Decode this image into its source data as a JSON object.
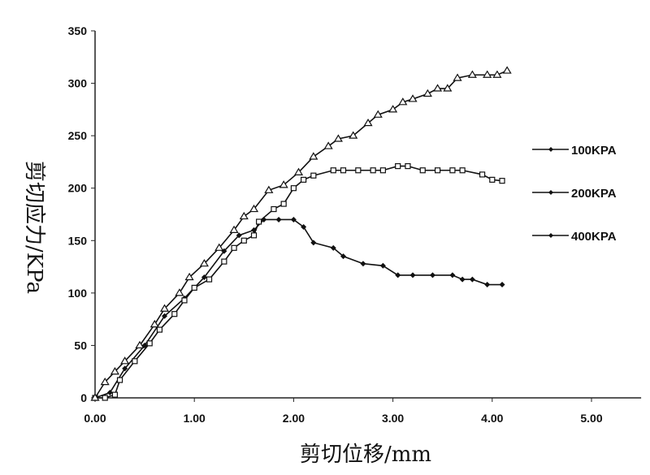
{
  "chart_data": {
    "type": "line",
    "title": "",
    "xlabel": "剪切位移/mm",
    "ylabel": "剪切应力/KPa",
    "xlim": [
      0,
      5.5
    ],
    "ylim": [
      0,
      350
    ],
    "xticks": [
      "0.00",
      "1.00",
      "2.00",
      "3.00",
      "4.00",
      "5.00"
    ],
    "xtick_values": [
      0,
      1,
      2,
      3,
      4,
      5
    ],
    "yticks": [
      "0",
      "50",
      "100",
      "150",
      "200",
      "250",
      "300",
      "350"
    ],
    "ytick_values": [
      0,
      50,
      100,
      150,
      200,
      250,
      300,
      350
    ],
    "grid": false,
    "legend_position": "right",
    "series": [
      {
        "name": "100KPA",
        "marker": "diamond",
        "x": [
          0,
          0.15,
          0.3,
          0.5,
          0.7,
          0.9,
          1.1,
          1.3,
          1.45,
          1.6,
          1.7,
          1.85,
          2.0,
          2.1,
          2.2,
          2.4,
          2.5,
          2.7,
          2.9,
          3.05,
          3.2,
          3.4,
          3.6,
          3.7,
          3.8,
          3.95,
          4.1
        ],
        "y": [
          0,
          5,
          28,
          50,
          78,
          95,
          115,
          140,
          155,
          160,
          170,
          170,
          170,
          163,
          148,
          143,
          135,
          128,
          126,
          117,
          117,
          117,
          117,
          113,
          113,
          108,
          108
        ]
      },
      {
        "name": "200KPA",
        "marker": "square",
        "x": [
          0,
          0.1,
          0.2,
          0.25,
          0.4,
          0.55,
          0.65,
          0.8,
          0.9,
          1.0,
          1.15,
          1.3,
          1.4,
          1.5,
          1.6,
          1.65,
          1.8,
          1.9,
          2.0,
          2.1,
          2.2,
          2.4,
          2.5,
          2.65,
          2.8,
          2.9,
          3.05,
          3.15,
          3.3,
          3.45,
          3.6,
          3.7,
          3.9,
          4.0,
          4.1
        ],
        "y": [
          0,
          0,
          3,
          17,
          35,
          52,
          65,
          80,
          93,
          105,
          113,
          130,
          143,
          150,
          155,
          168,
          180,
          185,
          200,
          208,
          212,
          217,
          217,
          217,
          217,
          217,
          221,
          221,
          217,
          217,
          217,
          217,
          213,
          208,
          207
        ]
      },
      {
        "name": "400KPA",
        "marker": "triangle",
        "x": [
          0,
          0.1,
          0.2,
          0.3,
          0.45,
          0.6,
          0.7,
          0.85,
          0.95,
          1.1,
          1.25,
          1.4,
          1.5,
          1.6,
          1.75,
          1.9,
          2.05,
          2.2,
          2.35,
          2.45,
          2.6,
          2.75,
          2.85,
          3.0,
          3.1,
          3.2,
          3.35,
          3.45,
          3.55,
          3.65,
          3.8,
          3.95,
          4.05,
          4.15
        ],
        "y": [
          0,
          15,
          25,
          35,
          50,
          70,
          85,
          100,
          115,
          128,
          143,
          160,
          173,
          180,
          198,
          203,
          215,
          230,
          240,
          247,
          250,
          262,
          270,
          275,
          282,
          285,
          290,
          295,
          295,
          305,
          308,
          308,
          308,
          312
        ]
      }
    ]
  }
}
